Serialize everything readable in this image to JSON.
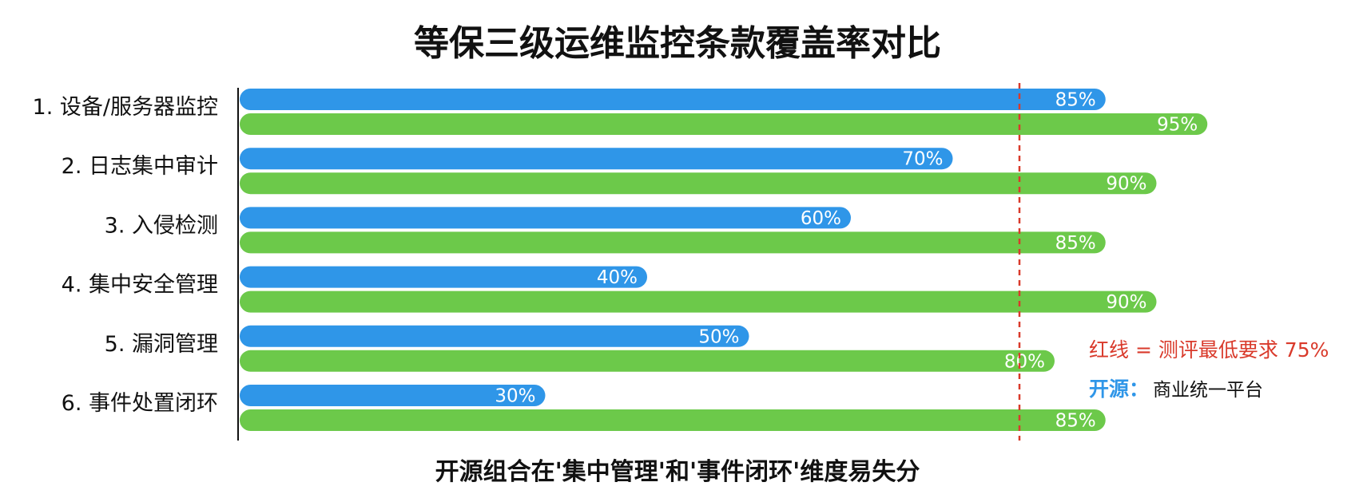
{
  "chart_data": {
    "type": "bar",
    "orientation": "horizontal",
    "title": "等保三级运维监控条款覆盖率对比",
    "categories": [
      "1. 设备/服务器监控",
      "2. 日志集中审计",
      "3. 入侵检测",
      "4. 集中安全管理",
      "5. 漏洞管理",
      "6. 事件处置闭环"
    ],
    "series": [
      {
        "name": "开源",
        "color": "#2f96e8",
        "values": [
          85,
          70,
          60,
          40,
          50,
          30
        ]
      },
      {
        "name": "商业统一平台",
        "color": "#6cc94a",
        "values": [
          95,
          90,
          85,
          90,
          80,
          85
        ]
      }
    ],
    "value_suffix": "%",
    "xlim": [
      0,
      100
    ],
    "reference_line": {
      "value": 75,
      "color": "#d93a2b",
      "label": "红线 = 测评最低要求 75%"
    },
    "legend": {
      "position": "right",
      "blue_label": "开源：",
      "black_label": "商业统一平台"
    },
    "grid": false,
    "footnote": "开源组合在'集中管理'和'事件闭环'维度易失分"
  }
}
